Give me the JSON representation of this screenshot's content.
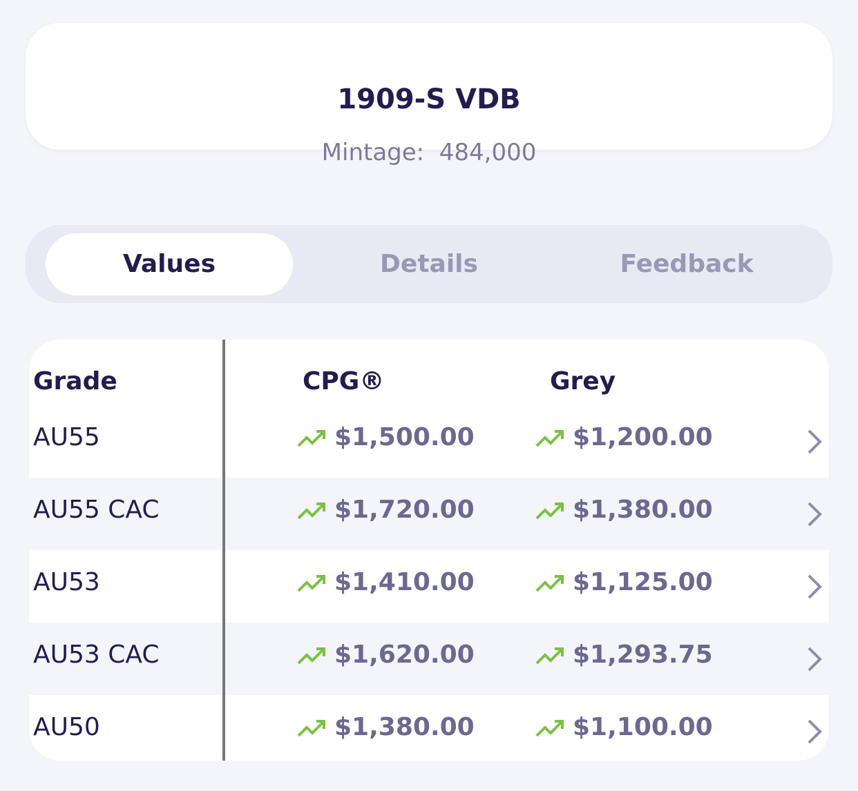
{
  "header": {
    "title": "1909-S VDB",
    "mintage_label": "Mintage:",
    "mintage": "484,000"
  },
  "tabs": [
    "Values",
    "Details",
    "Feedback"
  ],
  "table": {
    "columns": [
      "Grade",
      "CPG®",
      "Grey"
    ],
    "rows": [
      [
        "AU55",
        "$1,500.00",
        "$1,200.00"
      ],
      [
        "AU55 CAC",
        "$1,720.00",
        "$1,380.00"
      ],
      [
        "AU53",
        "$1,410.00",
        "$1,125.00"
      ],
      [
        "AU53 CAC",
        "$1,620.00",
        "$1,293.75"
      ],
      [
        "AU50",
        "$1,380.00",
        "$1,100.00"
      ]
    ]
  }
}
